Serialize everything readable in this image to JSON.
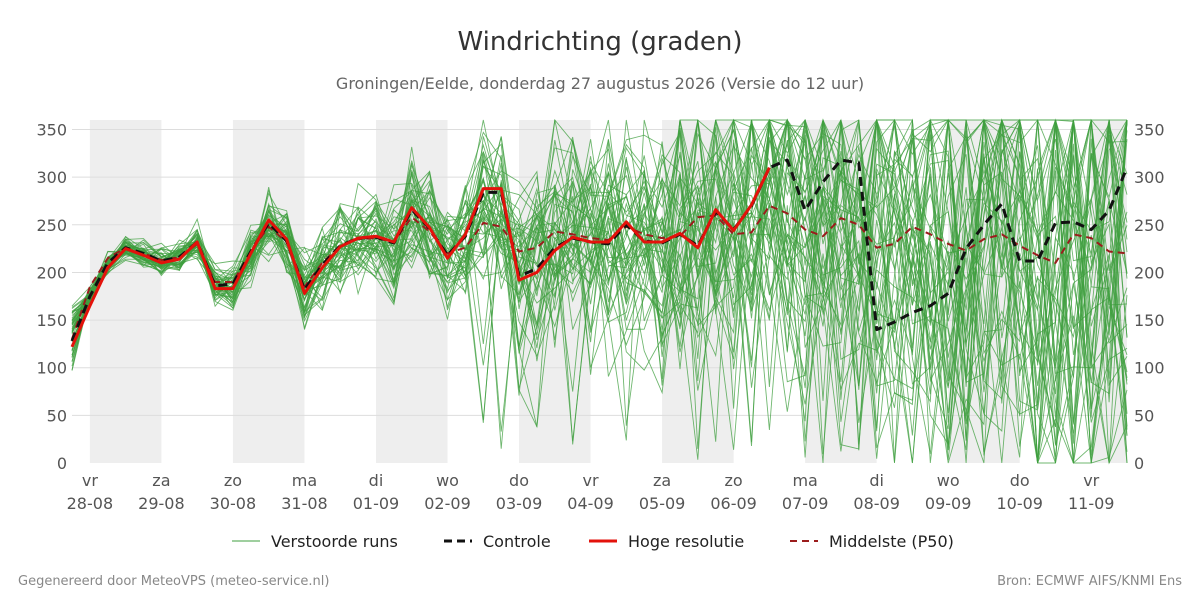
{
  "page": {
    "title": "Windrichting (graden)",
    "subtitle": "Groningen/Eelde, donderdag 27 augustus 2026 (Versie do 12 uur)",
    "footer_left": "Gegenereerd door MeteoVPS (meteo-service.nl)",
    "footer_right": "Bron: ECMWF AIFS/KNMI Ens"
  },
  "chart_data": {
    "type": "line",
    "title": "Windrichting (graden)",
    "subtitle": "Groningen/Eelde, donderdag 27 augustus 2026 (Versie do 12 uur)",
    "xlabel": "",
    "ylabel": "",
    "ylim": [
      0,
      360
    ],
    "yticks": [
      0,
      50,
      100,
      150,
      200,
      250,
      300,
      350
    ],
    "xlim": [
      -0.25,
      14.5
    ],
    "grid": true,
    "weekend_shading": [
      [
        0,
        1
      ],
      [
        2,
        3
      ],
      [
        4,
        5
      ],
      [
        6,
        7
      ],
      [
        8,
        9
      ],
      [
        10,
        11
      ],
      [
        12,
        13
      ],
      [
        14,
        14.5
      ]
    ],
    "x_ticks": [
      {
        "day": 0,
        "weekday": "vr",
        "date": "28-08"
      },
      {
        "day": 1,
        "weekday": "za",
        "date": "29-08"
      },
      {
        "day": 2,
        "weekday": "zo",
        "date": "30-08"
      },
      {
        "day": 3,
        "weekday": "ma",
        "date": "31-08"
      },
      {
        "day": 4,
        "weekday": "di",
        "date": "01-09"
      },
      {
        "day": 5,
        "weekday": "wo",
        "date": "02-09"
      },
      {
        "day": 6,
        "weekday": "do",
        "date": "03-09"
      },
      {
        "day": 7,
        "weekday": "vr",
        "date": "04-09"
      },
      {
        "day": 8,
        "weekday": "za",
        "date": "05-09"
      },
      {
        "day": 9,
        "weekday": "zo",
        "date": "06-09"
      },
      {
        "day": 10,
        "weekday": "ma",
        "date": "07-09"
      },
      {
        "day": 11,
        "weekday": "di",
        "date": "08-09"
      },
      {
        "day": 12,
        "weekday": "wo",
        "date": "09-09"
      },
      {
        "day": 13,
        "weekday": "do",
        "date": "10-09"
      },
      {
        "day": 14,
        "weekday": "vr",
        "date": "11-09"
      }
    ],
    "legend": [
      {
        "key": "perturbed",
        "label": "Verstoorde runs",
        "color": "#4caf50",
        "style": "thin"
      },
      {
        "key": "control",
        "label": "Controle",
        "color": "#111111",
        "style": "dashed"
      },
      {
        "key": "hires",
        "label": "Hoge resolutie",
        "color": "#e3120b",
        "style": "solid"
      },
      {
        "key": "p50",
        "label": "Middelste (P50)",
        "color": "#9b1c1c",
        "style": "dashed"
      }
    ],
    "colors": {
      "perturbed": "#3f9f3f",
      "control": "#111111",
      "hires": "#e3120b",
      "p50": "#9b1c1c",
      "shade": "#eeeeee",
      "grid": "#dddddd"
    },
    "series": [
      {
        "key": "hires",
        "x": [
          -0.25,
          0,
          0.25,
          0.5,
          0.75,
          1,
          1.25,
          1.5,
          1.75,
          2,
          2.25,
          2.5,
          2.75,
          3,
          3.25,
          3.5,
          3.75,
          4,
          4.25,
          4.5,
          4.75,
          5,
          5.25,
          5.5,
          5.75,
          6,
          6.25,
          6.5,
          6.75,
          7,
          7.25,
          7.5,
          7.75,
          8,
          8.25,
          8.5,
          8.75,
          9,
          9.25,
          9.5
        ],
        "values": [
          122,
          165,
          205,
          225,
          218,
          210,
          214,
          232,
          183,
          183,
          220,
          255,
          235,
          178,
          205,
          227,
          236,
          238,
          232,
          268,
          247,
          215,
          240,
          288,
          288,
          192,
          200,
          223,
          237,
          232,
          232,
          253,
          232,
          232,
          241,
          226,
          266,
          244,
          271,
          310
        ]
      },
      {
        "key": "control",
        "x": [
          -0.25,
          0,
          0.25,
          0.5,
          0.75,
          1,
          1.25,
          1.5,
          1.75,
          2,
          2.25,
          2.5,
          2.75,
          3,
          3.25,
          3.5,
          3.75,
          4,
          4.25,
          4.5,
          4.75,
          5,
          5.25,
          5.5,
          5.75,
          6,
          6.25,
          6.5,
          6.75,
          7,
          7.25,
          7.5,
          7.75,
          8,
          8.25,
          8.5,
          8.75,
          9,
          9.25,
          9.5,
          9.75,
          10,
          10.25,
          10.5,
          10.75,
          11,
          11.25,
          11.5,
          11.75,
          12,
          12.25,
          12.5,
          12.75,
          13,
          13.25,
          13.5,
          13.75,
          14,
          14.25,
          14.5
        ],
        "values": [
          128,
          175,
          210,
          226,
          220,
          212,
          216,
          232,
          186,
          188,
          222,
          252,
          233,
          182,
          208,
          228,
          236,
          237,
          231,
          266,
          246,
          218,
          238,
          284,
          284,
          196,
          204,
          226,
          236,
          232,
          230,
          250,
          233,
          231,
          240,
          228,
          264,
          245,
          270,
          310,
          318,
          265,
          295,
          318,
          315,
          140,
          148,
          158,
          165,
          178,
          225,
          250,
          272,
          212,
          212,
          252,
          253,
          245,
          265,
          310
        ]
      },
      {
        "key": "p50",
        "x": [
          -0.25,
          0,
          0.25,
          0.5,
          0.75,
          1,
          1.25,
          1.5,
          1.75,
          2,
          2.25,
          2.5,
          2.75,
          3,
          3.25,
          3.5,
          3.75,
          4,
          4.25,
          4.5,
          4.75,
          5,
          5.25,
          5.5,
          5.75,
          6,
          6.25,
          6.5,
          6.75,
          7,
          7.25,
          7.5,
          7.75,
          8,
          8.25,
          8.5,
          8.75,
          9,
          9.25,
          9.5,
          9.75,
          10,
          10.25,
          10.5,
          10.75,
          11,
          11.25,
          11.5,
          11.75,
          12,
          12.25,
          12.5,
          12.75,
          13,
          13.25,
          13.5,
          13.75,
          14,
          14.25,
          14.5
        ],
        "values": [
          130,
          185,
          215,
          226,
          220,
          213,
          216,
          230,
          190,
          190,
          222,
          248,
          232,
          185,
          210,
          228,
          235,
          236,
          232,
          258,
          243,
          220,
          226,
          252,
          248,
          222,
          226,
          243,
          240,
          236,
          234,
          248,
          240,
          236,
          238,
          258,
          260,
          240,
          242,
          270,
          262,
          245,
          238,
          257,
          250,
          226,
          230,
          248,
          240,
          230,
          223,
          235,
          240,
          228,
          218,
          210,
          240,
          236,
          222,
          220
        ]
      }
    ]
  }
}
